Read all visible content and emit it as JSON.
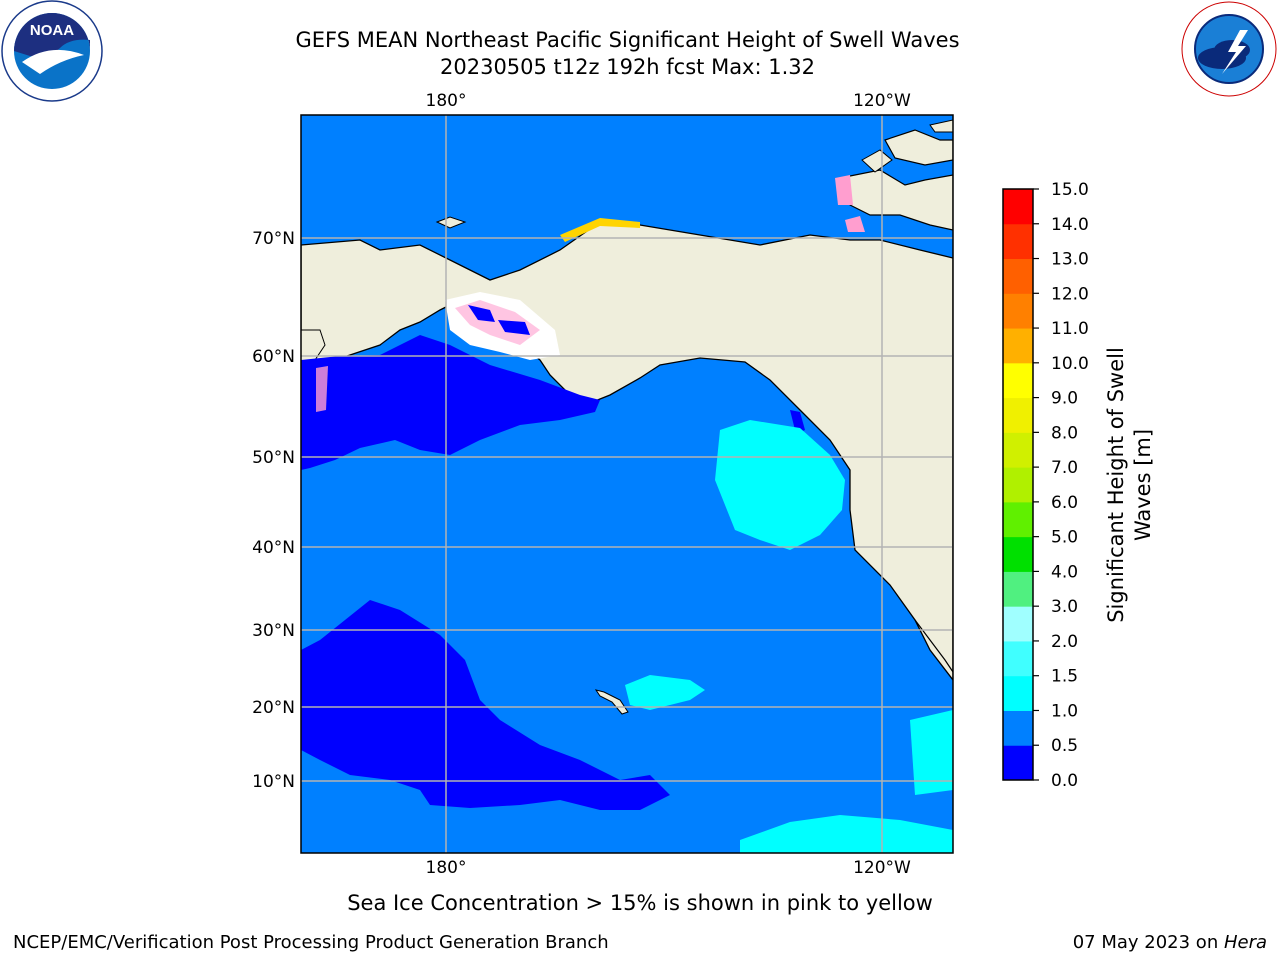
{
  "header": {
    "title_line1": "GEFS MEAN Northeast Pacific Significant Height of Swell Waves",
    "title_line2": "20230505 t12z 192h fcst   Max: 1.32"
  },
  "logos": {
    "noaa_text": "NOAA",
    "noaa_ring_text": "NATIONAL OCEANIC AND ATMOSPHERIC ADMINISTRATION · U.S. DEPARTMENT OF COMMERCE",
    "nws_ring_text": "NATIONAL WEATHER SERVICE"
  },
  "map": {
    "lon_labels": [
      "180°",
      "120°W"
    ],
    "lat_labels": [
      "70°N",
      "60°N",
      "50°N",
      "40°N",
      "30°N",
      "20°N",
      "10°N"
    ]
  },
  "colorbar": {
    "label_line1": "Significant Height of Swell",
    "label_line2": "Waves [m]",
    "ticks": [
      "0.0",
      "0.5",
      "1.0",
      "1.5",
      "2.0",
      "3.0",
      "4.0",
      "5.0",
      "6.0",
      "7.0",
      "8.0",
      "9.0",
      "10.0",
      "11.0",
      "12.0",
      "13.0",
      "14.0",
      "15.0"
    ],
    "colors": [
      "#0000ff",
      "#0080ff",
      "#00ffff",
      "#40ffff",
      "#a0ffff",
      "#50f080",
      "#00e000",
      "#60f000",
      "#b0f000",
      "#d0f000",
      "#f0f000",
      "#ffff00",
      "#ffb000",
      "#ff8000",
      "#ff6000",
      "#ff3000",
      "#ff0000"
    ]
  },
  "caption": "Sea Ice Concentration > 15% is shown in pink to yellow",
  "footer": {
    "left": "NCEP/EMC/Verification Post Processing Product Generation Branch",
    "right_date": "07 May 2023 on ",
    "right_host": "Hera"
  }
}
